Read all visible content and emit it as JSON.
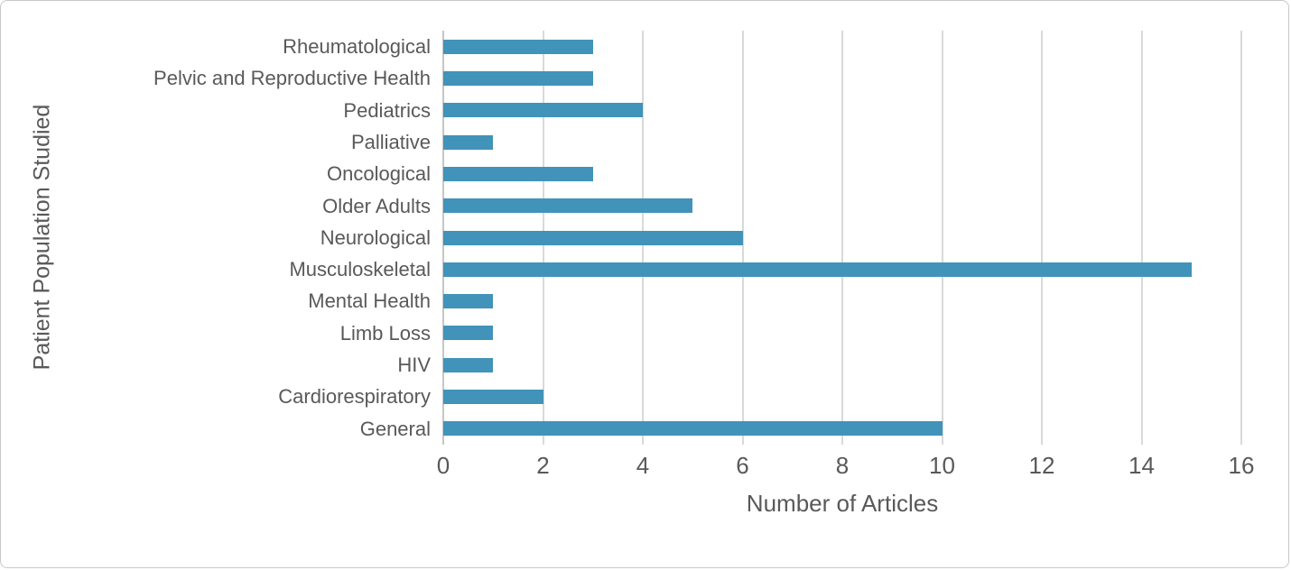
{
  "chart_data": {
    "type": "bar",
    "orientation": "horizontal",
    "title": "",
    "xlabel": "Number of Articles",
    "ylabel": "Patient Population Studied",
    "categories": [
      "Rheumatological",
      "Pelvic and Reproductive Health",
      "Pediatrics",
      "Palliative",
      "Oncological",
      "Older Adults",
      "Neurological",
      "Musculoskeletal",
      "Mental Health",
      "Limb Loss",
      "HIV",
      "Cardiorespiratory",
      "General"
    ],
    "values": [
      3,
      3,
      4,
      1,
      3,
      5,
      6,
      15,
      1,
      1,
      1,
      2,
      10
    ],
    "xlim": [
      0,
      16
    ],
    "xticks": [
      0,
      2,
      4,
      6,
      8,
      10,
      12,
      14,
      16
    ],
    "grid": true,
    "legend": false,
    "bar_color": "#4193B9",
    "text_color": "#595959",
    "gridline_color": "#d9d9d9",
    "border_color": "#c9c9c9"
  }
}
